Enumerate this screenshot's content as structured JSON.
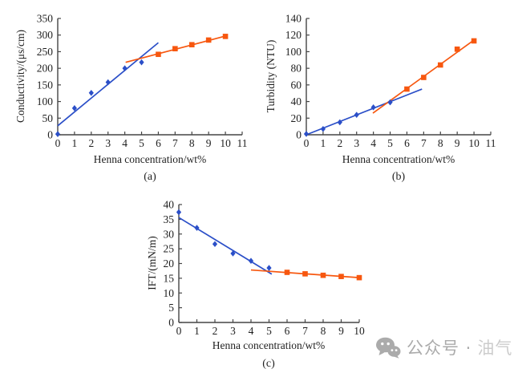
{
  "style": {
    "background": "#ffffff",
    "axis_color": "#454545",
    "text_color": "#1f1f1f",
    "series1_color": "#2b4fc8",
    "series2_color": "#f7570f",
    "watermark_color": "#ababab",
    "watermark_faded_color": "#cccccc"
  },
  "watermark": {
    "icon": "wechat-icon",
    "text_primary": "公众号 ·",
    "text_secondary": "油气"
  },
  "chart_data": [
    {
      "id": "a",
      "type": "scatter",
      "caption": "(a)",
      "xlabel": "Henna concentration/wt%",
      "ylabel": "Conductivity/(μs/cm)",
      "xlim": [
        0,
        11
      ],
      "ylim": [
        0,
        350
      ],
      "xtick_step": 1,
      "ytick_step": 50,
      "grid": false,
      "legend_position": "none",
      "series": [
        {
          "name": "low-concentration-diamond-blue",
          "marker": "diamond",
          "color": "#2b4fc8",
          "x": [
            0,
            1,
            2,
            3,
            4,
            5
          ],
          "y": [
            2,
            80,
            126,
            158,
            200,
            218
          ]
        },
        {
          "name": "high-concentration-square-orange",
          "marker": "square",
          "color": "#f7570f",
          "x": [
            6,
            7,
            8,
            9,
            10
          ],
          "y": [
            242,
            259,
            271,
            285,
            296
          ]
        }
      ],
      "trendlines": [
        {
          "name": "blue-trendline",
          "color": "#2b4fc8",
          "x1": 0,
          "y1": 27,
          "x2": 6,
          "y2": 277
        },
        {
          "name": "orange-trendline",
          "color": "#f7570f",
          "x1": 4.05,
          "y1": 218,
          "x2": 10,
          "y2": 297
        }
      ]
    },
    {
      "id": "b",
      "type": "scatter",
      "caption": "(b)",
      "xlabel": "Henna concentration/wt%",
      "ylabel": "Turbidity (NTU)",
      "xlim": [
        0,
        11
      ],
      "ylim": [
        0,
        140
      ],
      "xtick_step": 1,
      "ytick_step": 20,
      "grid": false,
      "legend_position": "none",
      "series": [
        {
          "name": "low-concentration-diamond-blue",
          "marker": "diamond",
          "color": "#2b4fc8",
          "x": [
            0,
            1,
            2,
            3,
            4,
            5
          ],
          "y": [
            1,
            7,
            15,
            24,
            33,
            39
          ]
        },
        {
          "name": "high-concentration-square-orange",
          "marker": "square",
          "color": "#f7570f",
          "x": [
            6,
            7,
            8,
            9,
            10
          ],
          "y": [
            55,
            69,
            84,
            103,
            113
          ]
        }
      ],
      "trendlines": [
        {
          "name": "blue-trendline",
          "color": "#2b4fc8",
          "x1": 0,
          "y1": 0,
          "x2": 6.9,
          "y2": 55
        },
        {
          "name": "orange-trendline",
          "color": "#f7570f",
          "x1": 3.97,
          "y1": 26,
          "x2": 10,
          "y2": 114
        }
      ]
    },
    {
      "id": "c",
      "type": "scatter",
      "caption": "(c)",
      "xlabel": "Henna concentration/wt%",
      "ylabel": "IFT/(mN/m)",
      "xlim": [
        0,
        10
      ],
      "ylim": [
        0,
        40
      ],
      "xtick_step": 1,
      "ytick_step": 5,
      "grid": false,
      "legend_position": "none",
      "series": [
        {
          "name": "low-concentration-diamond-blue",
          "marker": "diamond",
          "color": "#2b4fc8",
          "x": [
            0,
            1,
            2,
            3,
            4,
            5
          ],
          "y": [
            37.4,
            32.1,
            26.6,
            23.4,
            20.9,
            18.5
          ]
        },
        {
          "name": "high-concentration-square-orange",
          "marker": "square",
          "color": "#f7570f",
          "x": [
            6,
            7,
            8,
            9,
            10
          ],
          "y": [
            17.0,
            16.5,
            16.0,
            15.6,
            15.2
          ]
        }
      ],
      "trendlines": [
        {
          "name": "blue-trendline",
          "color": "#2b4fc8",
          "x1": 0,
          "y1": 35.6,
          "x2": 5.15,
          "y2": 16.4
        },
        {
          "name": "orange-trendline",
          "color": "#f7570f",
          "x1": 4,
          "y1": 17.8,
          "x2": 10,
          "y2": 15.2
        }
      ]
    }
  ]
}
